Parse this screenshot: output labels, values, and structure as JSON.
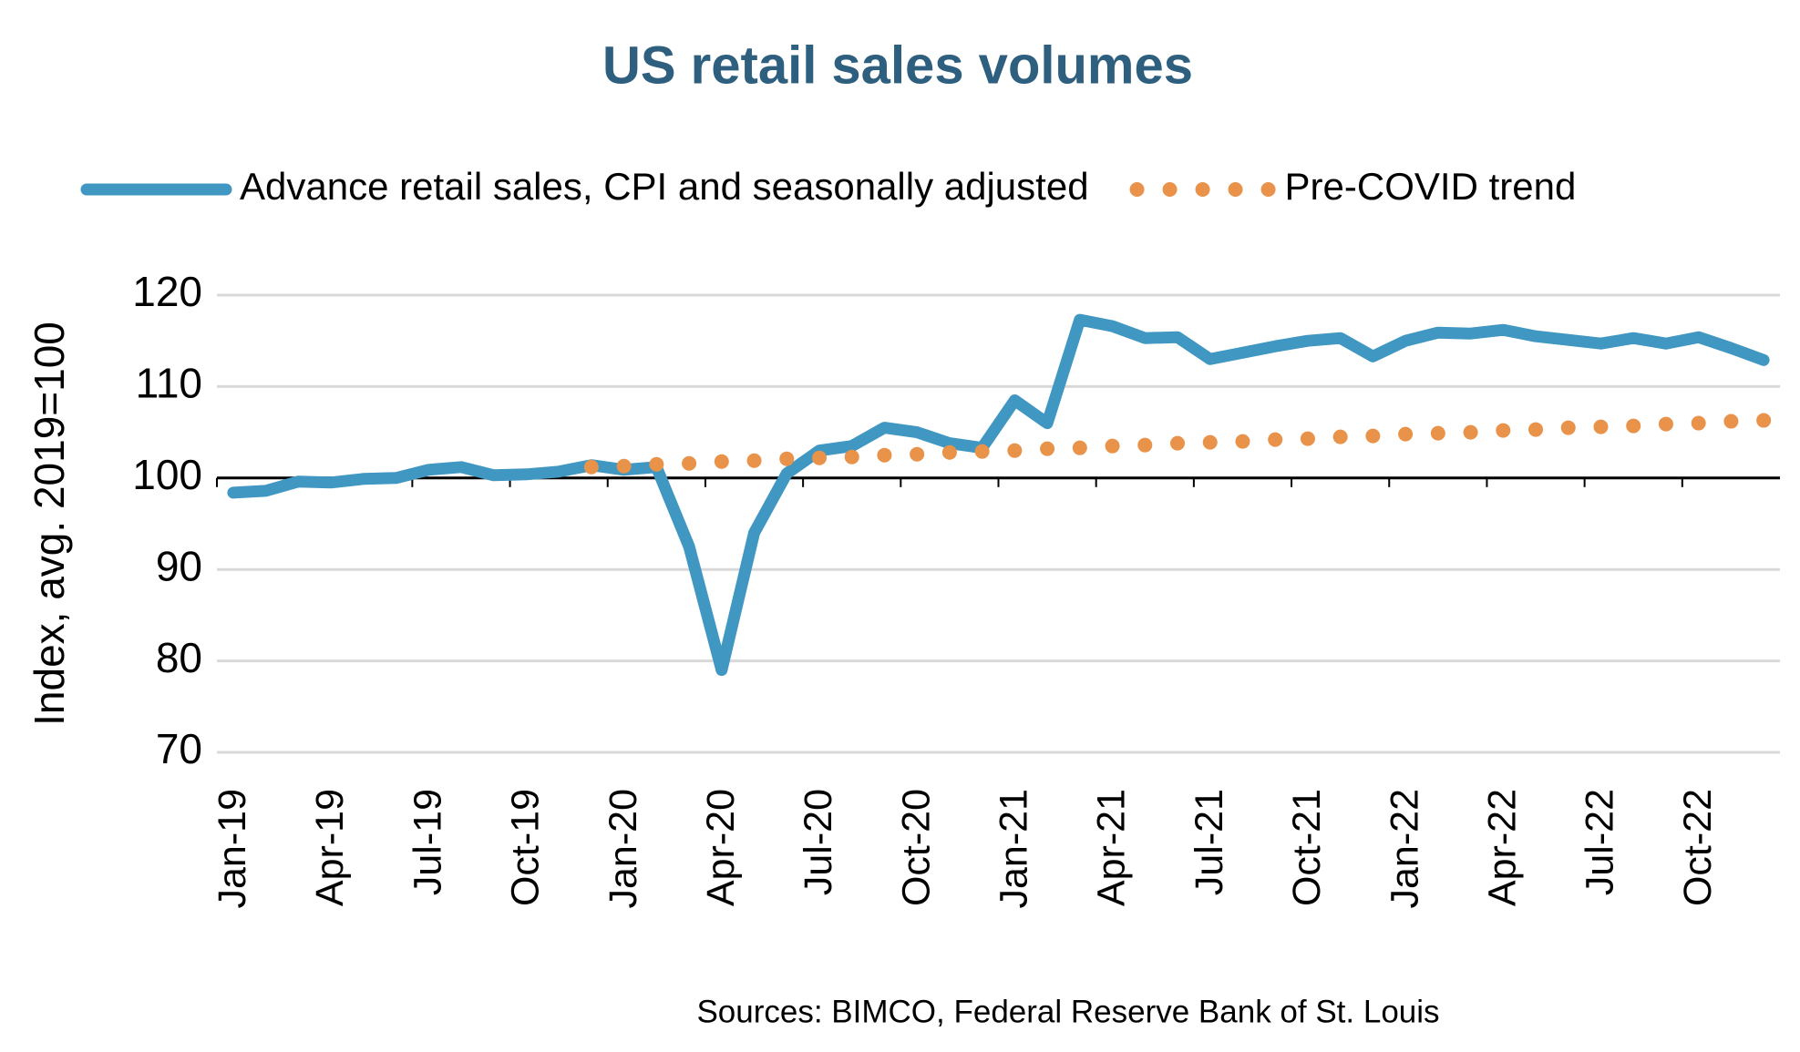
{
  "chart_data": {
    "type": "line",
    "title": "US retail sales volumes",
    "y_label": "Index, avg. 2019=100",
    "source": "Sources: BIMCO, Federal Reserve Bank of St. Louis",
    "categories": [
      "Jan-19",
      null,
      null,
      "Apr-19",
      null,
      null,
      "Jul-19",
      null,
      null,
      "Oct-19",
      null,
      null,
      "Jan-20",
      null,
      null,
      "Apr-20",
      null,
      null,
      "Jul-20",
      null,
      null,
      "Oct-20",
      null,
      null,
      "Jan-21",
      null,
      null,
      "Apr-21",
      null,
      null,
      "Jul-21",
      null,
      null,
      "Oct-21",
      null,
      null,
      "Jan-22",
      null,
      null,
      "Apr-22",
      null,
      null,
      "Jul-22",
      null,
      null,
      "Oct-22",
      null,
      null
    ],
    "series": [
      {
        "name": "Advance retail sales, CPI and seasonally adjusted",
        "color": "#3f97c2",
        "style": "solid",
        "values": [
          98.4,
          98.6,
          99.6,
          99.5,
          99.9,
          100.0,
          100.9,
          101.2,
          100.3,
          100.4,
          100.7,
          101.4,
          100.9,
          101.2,
          92.5,
          79.0,
          94.0,
          100.5,
          103.0,
          103.5,
          105.5,
          105.0,
          103.8,
          103.3,
          108.5,
          106.0,
          117.3,
          116.6,
          115.3,
          115.4,
          113.0,
          113.7,
          114.4,
          115.0,
          115.3,
          113.3,
          115.0,
          115.9,
          115.8,
          116.2,
          115.5,
          115.1,
          114.7,
          115.3,
          114.7,
          115.4,
          114.2,
          112.9
        ]
      },
      {
        "name": "Pre-COVID trend",
        "color": "#e8924a",
        "style": "dotted",
        "values": [
          null,
          null,
          null,
          null,
          null,
          null,
          null,
          null,
          null,
          null,
          null,
          101.2,
          101.3,
          101.5,
          101.6,
          101.8,
          101.9,
          102.1,
          102.2,
          102.3,
          102.5,
          102.6,
          102.8,
          102.9,
          103.0,
          103.2,
          103.3,
          103.5,
          103.6,
          103.8,
          103.9,
          104.0,
          104.2,
          104.3,
          104.5,
          104.6,
          104.8,
          104.9,
          105.0,
          105.2,
          105.3,
          105.5,
          105.6,
          105.7,
          105.9,
          106.0,
          106.2,
          106.3
        ]
      }
    ],
    "ylim": [
      70,
      120
    ],
    "yticks": [
      70,
      80,
      90,
      100,
      110,
      120
    ],
    "x_axis_crosses_at": 100,
    "grid": true,
    "legend": "top"
  }
}
